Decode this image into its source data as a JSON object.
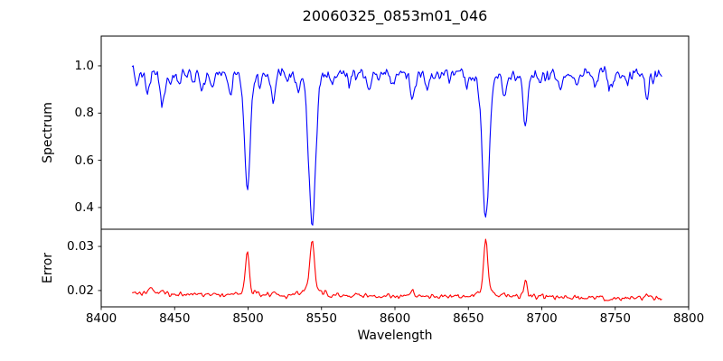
{
  "figure": {
    "title": "20060325_0853m01_046",
    "xlabel": "Wavelength",
    "background": "#ffffff",
    "axis_color": "#000000",
    "panels": [
      {
        "ylabel": "Spectrum"
      },
      {
        "ylabel": "Error"
      }
    ]
  },
  "chart_data": [
    {
      "type": "line",
      "series_name": "spectrum",
      "title": "20060325_0853m01_046",
      "xlabel": "Wavelength",
      "ylabel": "Spectrum",
      "color": "#0000ff",
      "grid": false,
      "legend": null,
      "xlim": [
        8400,
        8800
      ],
      "ylim": [
        0.308,
        1.126
      ],
      "xticks": [
        8400,
        8450,
        8500,
        8550,
        8600,
        8650,
        8700,
        8750,
        8800
      ],
      "xtick_labels": [
        "8400",
        "8450",
        "8500",
        "8550",
        "8600",
        "8650",
        "8700",
        "8750",
        "8800"
      ],
      "yticks": [
        1.0,
        0.8,
        0.6,
        0.4
      ],
      "ytick_labels": [
        "1.0",
        "0.8",
        "0.6",
        "0.4"
      ],
      "x_range": [
        8421,
        8782
      ],
      "sample_step": 0.75,
      "baseline": 0.968,
      "baseline_slope": 0.0,
      "noise_sigma": 0.019,
      "noise_smooth": 0.45,
      "seed": 7,
      "features": [
        {
          "center": 8424.5,
          "amplitude": -0.045,
          "sigma": 1.2
        },
        {
          "center": 8431.5,
          "amplitude": -0.075,
          "sigma": 1.4
        },
        {
          "center": 8441.5,
          "amplitude": -0.135,
          "sigma": 1.6
        },
        {
          "center": 8447.0,
          "amplitude": -0.05,
          "sigma": 1.1
        },
        {
          "center": 8452.0,
          "amplitude": -0.045,
          "sigma": 1.1
        },
        {
          "center": 8462.0,
          "amplitude": -0.04,
          "sigma": 1.1
        },
        {
          "center": 8468.5,
          "amplitude": -0.07,
          "sigma": 1.3
        },
        {
          "center": 8475.5,
          "amplitude": -0.065,
          "sigma": 1.2
        },
        {
          "center": 8488.5,
          "amplitude": -0.09,
          "sigma": 1.4
        },
        {
          "center": 8499.5,
          "amplitude": -0.49,
          "sigma": 2.0
        },
        {
          "center": 8508.0,
          "amplitude": -0.05,
          "sigma": 1.1
        },
        {
          "center": 8517.0,
          "amplitude": -0.105,
          "sigma": 1.3
        },
        {
          "center": 8526.0,
          "amplitude": -0.04,
          "sigma": 1.1
        },
        {
          "center": 8534.0,
          "amplitude": -0.075,
          "sigma": 1.2
        },
        {
          "center": 8543.6,
          "amplitude": -0.64,
          "sigma": 2.4
        },
        {
          "center": 8557.0,
          "amplitude": -0.045,
          "sigma": 1.1
        },
        {
          "center": 8569.0,
          "amplitude": -0.035,
          "sigma": 1.1
        },
        {
          "center": 8582.5,
          "amplitude": -0.06,
          "sigma": 1.2
        },
        {
          "center": 8598.0,
          "amplitude": -0.05,
          "sigma": 1.2
        },
        {
          "center": 8611.8,
          "amplitude": -0.115,
          "sigma": 1.5
        },
        {
          "center": 8622.0,
          "amplitude": -0.05,
          "sigma": 1.1
        },
        {
          "center": 8637.0,
          "amplitude": -0.04,
          "sigma": 1.1
        },
        {
          "center": 8648.5,
          "amplitude": -0.06,
          "sigma": 1.2
        },
        {
          "center": 8661.8,
          "amplitude": -0.625,
          "sigma": 2.3
        },
        {
          "center": 8674.5,
          "amplitude": -0.09,
          "sigma": 1.3
        },
        {
          "center": 8688.8,
          "amplitude": -0.215,
          "sigma": 1.6
        },
        {
          "center": 8699.0,
          "amplitude": -0.045,
          "sigma": 1.1
        },
        {
          "center": 8712.0,
          "amplitude": -0.05,
          "sigma": 1.2
        },
        {
          "center": 8724.0,
          "amplitude": -0.04,
          "sigma": 1.1
        },
        {
          "center": 8736.5,
          "amplitude": -0.06,
          "sigma": 1.2
        },
        {
          "center": 8747.5,
          "amplitude": -0.07,
          "sigma": 1.3
        },
        {
          "center": 8758.0,
          "amplitude": -0.045,
          "sigma": 1.1
        },
        {
          "center": 8771.5,
          "amplitude": -0.1,
          "sigma": 1.4
        }
      ]
    },
    {
      "type": "line",
      "series_name": "error",
      "title": "20060325_0853m01_046",
      "xlabel": "Wavelength",
      "ylabel": "Error",
      "color": "#ff0000",
      "grid": false,
      "legend": null,
      "xlim": [
        8400,
        8800
      ],
      "ylim": [
        0.0163,
        0.0339
      ],
      "xticks": [
        8400,
        8450,
        8500,
        8550,
        8600,
        8650,
        8700,
        8750,
        8800
      ],
      "xtick_labels": [
        "8400",
        "8450",
        "8500",
        "8550",
        "8600",
        "8650",
        "8700",
        "8750",
        "8800"
      ],
      "yticks": [
        0.03,
        0.02
      ],
      "ytick_labels": [
        "0.03",
        "0.02"
      ],
      "x_range": [
        8421,
        8782
      ],
      "sample_step": 0.75,
      "baseline": 0.0188,
      "baseline_slope": -3e-06,
      "noise_sigma": 0.0004,
      "noise_smooth": 0.5,
      "seed": 3,
      "features": [
        {
          "center": 8434.0,
          "amplitude": 0.0018,
          "sigma": 1.5
        },
        {
          "center": 8442.0,
          "amplitude": 0.0009,
          "sigma": 1.3
        },
        {
          "center": 8499.5,
          "amplitude": 0.0085,
          "sigma": 1.2
        },
        {
          "center": 8499.5,
          "amplitude": 0.0012,
          "sigma": 4.0
        },
        {
          "center": 8517.0,
          "amplitude": 0.0007,
          "sigma": 1.2
        },
        {
          "center": 8543.6,
          "amplitude": 0.0112,
          "sigma": 1.4
        },
        {
          "center": 8543.6,
          "amplitude": 0.0018,
          "sigma": 4.5
        },
        {
          "center": 8611.8,
          "amplitude": 0.0012,
          "sigma": 1.4
        },
        {
          "center": 8661.8,
          "amplitude": 0.011,
          "sigma": 1.4
        },
        {
          "center": 8661.8,
          "amplitude": 0.0016,
          "sigma": 4.5
        },
        {
          "center": 8674.5,
          "amplitude": 0.0008,
          "sigma": 1.2
        },
        {
          "center": 8688.8,
          "amplitude": 0.0036,
          "sigma": 1.1
        },
        {
          "center": 8771.5,
          "amplitude": 0.0008,
          "sigma": 1.3
        }
      ]
    }
  ]
}
